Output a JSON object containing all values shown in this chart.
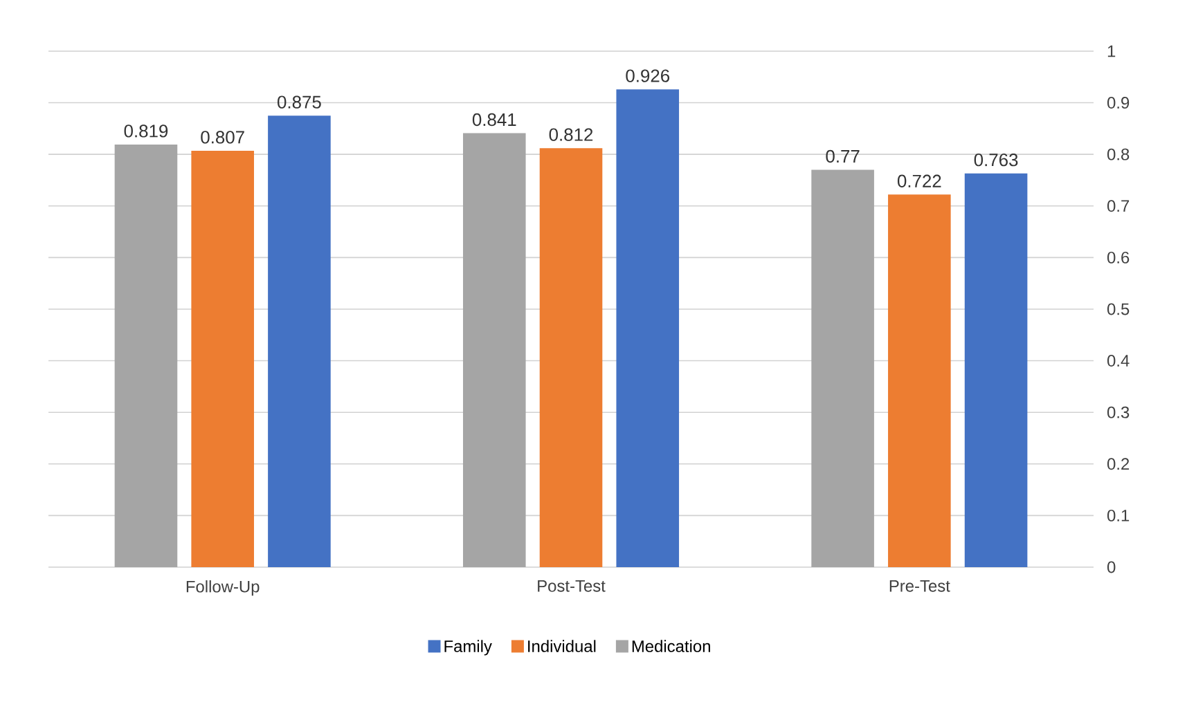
{
  "chart_data": {
    "type": "bar",
    "categories": [
      "Follow-Up",
      "Post-Test",
      "Pre-Test"
    ],
    "series": [
      {
        "name": "Medication",
        "color": "#a5a5a5",
        "values": [
          0.819,
          0.841,
          0.77
        ]
      },
      {
        "name": "Individual",
        "color": "#ed7d31",
        "values": [
          0.807,
          0.812,
          0.722
        ]
      },
      {
        "name": "Family",
        "color": "#4472c4",
        "values": [
          0.875,
          0.926,
          0.763
        ]
      }
    ],
    "ylim": [
      0,
      1
    ],
    "yticks": [
      0,
      0.1,
      0.2,
      0.3,
      0.4,
      0.5,
      0.6,
      0.7,
      0.8,
      0.9,
      1
    ],
    "grid": "y",
    "legend": "bottom",
    "data_labels": true
  }
}
